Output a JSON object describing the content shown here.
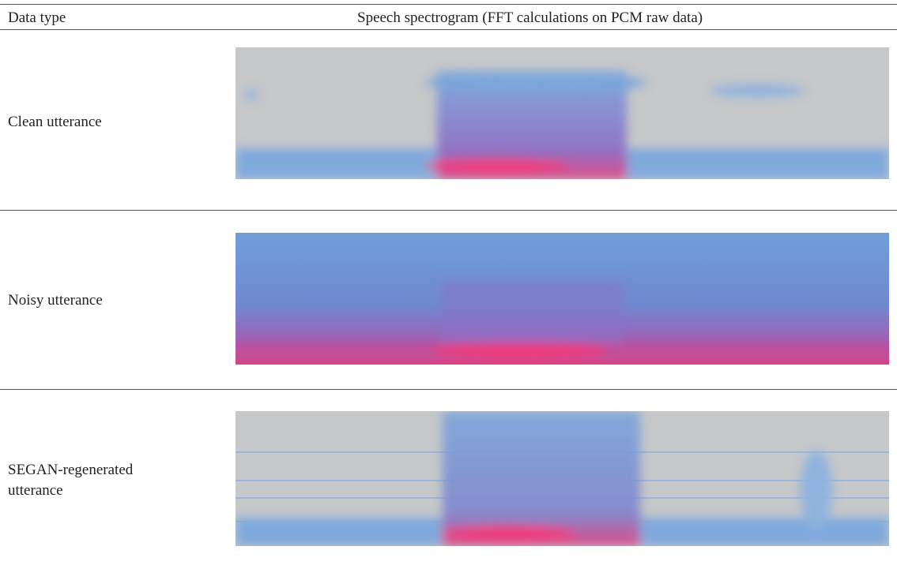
{
  "table": {
    "header": [
      "Data type",
      "Speech spectrogram (FFT calculations on PCM raw data)"
    ],
    "rows": [
      "Clean utterance",
      "Noisy utterance",
      "SEGAN-regenerated utterance"
    ]
  }
}
